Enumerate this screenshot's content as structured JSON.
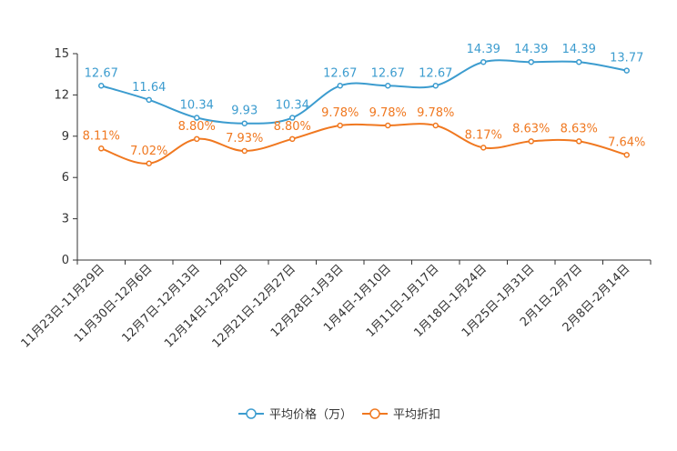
{
  "chart_data": {
    "type": "line",
    "title": "",
    "xlabel": "",
    "ylabel": "",
    "ylim": [
      0,
      15
    ],
    "yticks": [
      0,
      3,
      6,
      9,
      12,
      15
    ],
    "grid": false,
    "legend_position": "bottom-center",
    "categories": [
      "11月23日-11月29日",
      "11月30日-12月6日",
      "12月7日-12月13日",
      "12月14日-12月20日",
      "12月21日-12月27日",
      "12月28日-1月3日",
      "1月4日-1月10日",
      "1月11日-1月17日",
      "1月18日-1月24日",
      "1月25日-1月31日",
      "2月1日-2月7日",
      "2月8日-2月14日"
    ],
    "series": [
      {
        "name": "平均价格（万）",
        "color": "#3c9ccf",
        "values": [
          12.67,
          11.64,
          10.34,
          9.93,
          10.34,
          12.67,
          12.67,
          12.67,
          14.39,
          14.39,
          14.39,
          13.77
        ],
        "labels": [
          "12.67",
          "11.64",
          "10.34",
          "9.93",
          "10.34",
          "12.67",
          "12.67",
          "12.67",
          "14.39",
          "14.39",
          "14.39",
          "13.77"
        ]
      },
      {
        "name": "平均折扣",
        "color": "#f07820",
        "values": [
          8.11,
          7.02,
          8.8,
          7.93,
          8.8,
          9.78,
          9.78,
          9.78,
          8.17,
          8.63,
          8.63,
          7.64
        ],
        "labels": [
          "8.11%",
          "7.02%",
          "8.80%",
          "7.93%",
          "8.80%",
          "9.78%",
          "9.78%",
          "9.78%",
          "8.17%",
          "8.63%",
          "8.63%",
          "7.64%"
        ]
      }
    ]
  }
}
